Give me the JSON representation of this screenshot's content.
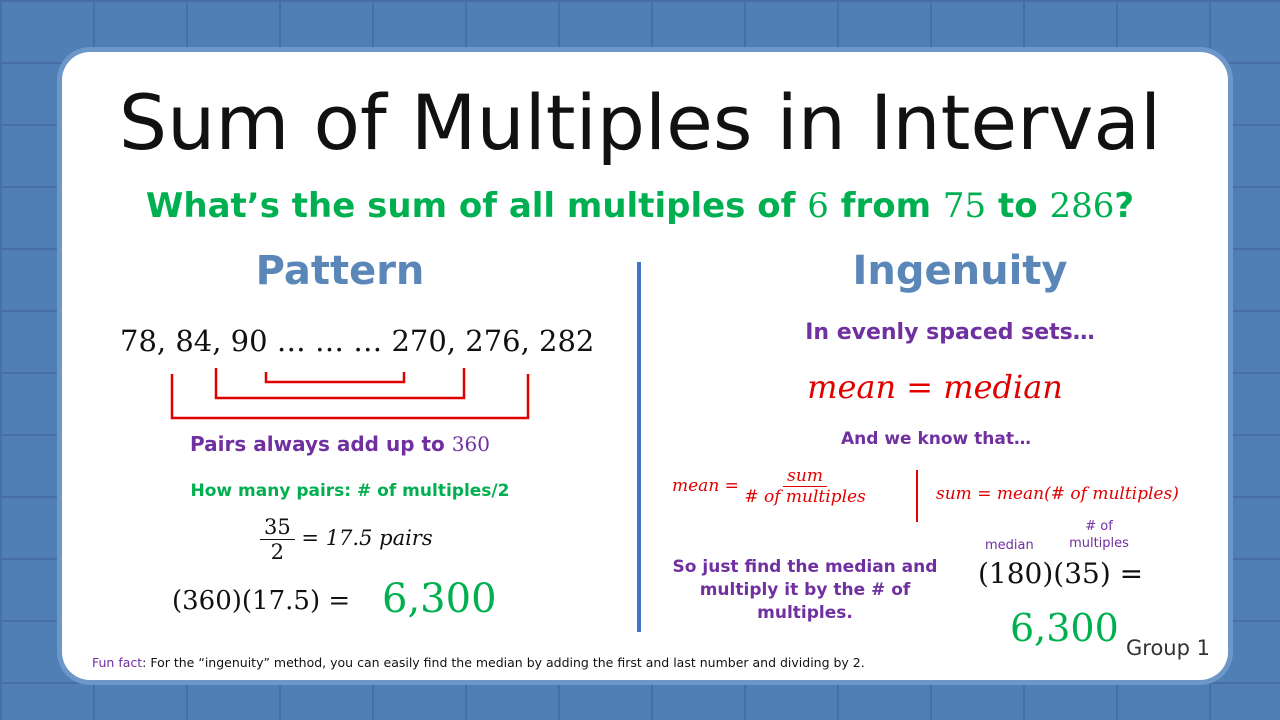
{
  "title": "Sum of Multiples in Interval",
  "question": [
    "What’s the sum of all multiples of ",
    "6",
    " from ",
    "75",
    " to ",
    "286",
    "?"
  ],
  "left": {
    "heading": "Pattern",
    "sequence": "78, 84, 90 … … … 270, 276, 282",
    "pairs_text": "Pairs always add up to ",
    "pairs_value": "360",
    "how_many": "How many pairs: # of multiples/2",
    "numerator": "35",
    "denominator": "2",
    "fraction_result": "= 17.5 pairs",
    "product": "(360)(17.5) =",
    "answer": "6,300"
  },
  "right": {
    "heading": "Ingenuity",
    "subheading": "In evenly spaced sets…",
    "equality": "mean = median",
    "know": "And we know that…",
    "mean_lhs": "mean =",
    "mean_num": "sum",
    "mean_den": "# of multiples",
    "sum_formula": "sum = mean(# of multiples)",
    "instruction": "So just find the median and multiply it by the # of multiples.",
    "note_median": "median",
    "note_count": [
      "# of",
      "multiples"
    ],
    "product": "(180)(35) =",
    "answer": "6,300",
    "group": "Group 1"
  },
  "footer": {
    "label": "Fun fact",
    "text": ": For the “ingenuity” method,  you can easily find the median by adding the first and last number  and dividing by 2."
  }
}
